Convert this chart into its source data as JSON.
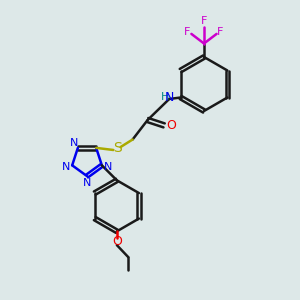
{
  "bg_color": "#dde8e8",
  "bond_color": "#1a1a1a",
  "N_color": "#0000ee",
  "O_color": "#ee0000",
  "S_color": "#aaaa00",
  "F_color": "#cc00cc",
  "H_color": "#008888",
  "line_width": 1.8,
  "dbo": 0.07,
  "xlim": [
    0,
    10
  ],
  "ylim": [
    0,
    10
  ]
}
